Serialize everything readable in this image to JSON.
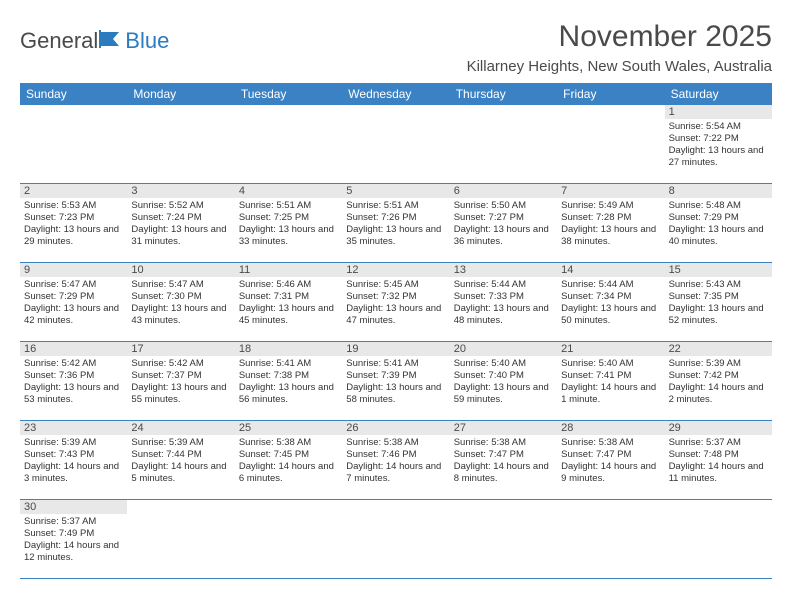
{
  "logo": {
    "text1": "General",
    "text2": "Blue"
  },
  "title": "November 2025",
  "location": "Killarney Heights, New South Wales, Australia",
  "colors": {
    "header_bg": "#3b82c4",
    "header_text": "#ffffff",
    "daynum_bg": "#e8e8e8",
    "divider": "#3b82c4",
    "body_text": "#333333",
    "title_text": "#4a4a4a"
  },
  "day_names": [
    "Sunday",
    "Monday",
    "Tuesday",
    "Wednesday",
    "Thursday",
    "Friday",
    "Saturday"
  ],
  "weeks": [
    [
      null,
      null,
      null,
      null,
      null,
      null,
      {
        "n": "1",
        "sr": "5:54 AM",
        "ss": "7:22 PM",
        "dl": "13 hours and 27 minutes."
      }
    ],
    [
      {
        "n": "2",
        "sr": "5:53 AM",
        "ss": "7:23 PM",
        "dl": "13 hours and 29 minutes."
      },
      {
        "n": "3",
        "sr": "5:52 AM",
        "ss": "7:24 PM",
        "dl": "13 hours and 31 minutes."
      },
      {
        "n": "4",
        "sr": "5:51 AM",
        "ss": "7:25 PM",
        "dl": "13 hours and 33 minutes."
      },
      {
        "n": "5",
        "sr": "5:51 AM",
        "ss": "7:26 PM",
        "dl": "13 hours and 35 minutes."
      },
      {
        "n": "6",
        "sr": "5:50 AM",
        "ss": "7:27 PM",
        "dl": "13 hours and 36 minutes."
      },
      {
        "n": "7",
        "sr": "5:49 AM",
        "ss": "7:28 PM",
        "dl": "13 hours and 38 minutes."
      },
      {
        "n": "8",
        "sr": "5:48 AM",
        "ss": "7:29 PM",
        "dl": "13 hours and 40 minutes."
      }
    ],
    [
      {
        "n": "9",
        "sr": "5:47 AM",
        "ss": "7:29 PM",
        "dl": "13 hours and 42 minutes."
      },
      {
        "n": "10",
        "sr": "5:47 AM",
        "ss": "7:30 PM",
        "dl": "13 hours and 43 minutes."
      },
      {
        "n": "11",
        "sr": "5:46 AM",
        "ss": "7:31 PM",
        "dl": "13 hours and 45 minutes."
      },
      {
        "n": "12",
        "sr": "5:45 AM",
        "ss": "7:32 PM",
        "dl": "13 hours and 47 minutes."
      },
      {
        "n": "13",
        "sr": "5:44 AM",
        "ss": "7:33 PM",
        "dl": "13 hours and 48 minutes."
      },
      {
        "n": "14",
        "sr": "5:44 AM",
        "ss": "7:34 PM",
        "dl": "13 hours and 50 minutes."
      },
      {
        "n": "15",
        "sr": "5:43 AM",
        "ss": "7:35 PM",
        "dl": "13 hours and 52 minutes."
      }
    ],
    [
      {
        "n": "16",
        "sr": "5:42 AM",
        "ss": "7:36 PM",
        "dl": "13 hours and 53 minutes."
      },
      {
        "n": "17",
        "sr": "5:42 AM",
        "ss": "7:37 PM",
        "dl": "13 hours and 55 minutes."
      },
      {
        "n": "18",
        "sr": "5:41 AM",
        "ss": "7:38 PM",
        "dl": "13 hours and 56 minutes."
      },
      {
        "n": "19",
        "sr": "5:41 AM",
        "ss": "7:39 PM",
        "dl": "13 hours and 58 minutes."
      },
      {
        "n": "20",
        "sr": "5:40 AM",
        "ss": "7:40 PM",
        "dl": "13 hours and 59 minutes."
      },
      {
        "n": "21",
        "sr": "5:40 AM",
        "ss": "7:41 PM",
        "dl": "14 hours and 1 minute."
      },
      {
        "n": "22",
        "sr": "5:39 AM",
        "ss": "7:42 PM",
        "dl": "14 hours and 2 minutes."
      }
    ],
    [
      {
        "n": "23",
        "sr": "5:39 AM",
        "ss": "7:43 PM",
        "dl": "14 hours and 3 minutes."
      },
      {
        "n": "24",
        "sr": "5:39 AM",
        "ss": "7:44 PM",
        "dl": "14 hours and 5 minutes."
      },
      {
        "n": "25",
        "sr": "5:38 AM",
        "ss": "7:45 PM",
        "dl": "14 hours and 6 minutes."
      },
      {
        "n": "26",
        "sr": "5:38 AM",
        "ss": "7:46 PM",
        "dl": "14 hours and 7 minutes."
      },
      {
        "n": "27",
        "sr": "5:38 AM",
        "ss": "7:47 PM",
        "dl": "14 hours and 8 minutes."
      },
      {
        "n": "28",
        "sr": "5:38 AM",
        "ss": "7:47 PM",
        "dl": "14 hours and 9 minutes."
      },
      {
        "n": "29",
        "sr": "5:37 AM",
        "ss": "7:48 PM",
        "dl": "14 hours and 11 minutes."
      }
    ],
    [
      {
        "n": "30",
        "sr": "5:37 AM",
        "ss": "7:49 PM",
        "dl": "14 hours and 12 minutes."
      },
      null,
      null,
      null,
      null,
      null,
      null
    ]
  ],
  "labels": {
    "sunrise": "Sunrise:",
    "sunset": "Sunset:",
    "daylight": "Daylight:"
  }
}
